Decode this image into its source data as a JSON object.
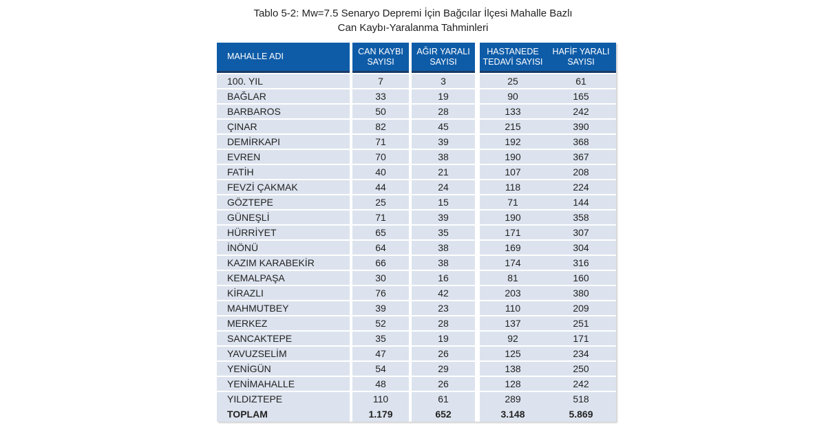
{
  "caption": {
    "line1": "Tablo 5-2: Mw=7.5 Senaryo Depremi İçin Bağcılar İlçesi Mahalle Bazlı",
    "line2": "Can Kaybı-Yaralanma Tahminleri"
  },
  "colors": {
    "header_bg": "#0e5ca8",
    "header_border": "#1a3a66",
    "row_bg": "#dce3ee",
    "header_text": "#ffffff",
    "body_text": "#222222"
  },
  "table": {
    "columns": [
      {
        "line1": "MAHALLE ADI",
        "line2": ""
      },
      {
        "line1": "CAN KAYBI",
        "line2": "SAYISI"
      },
      {
        "line1": "AĞIR YARALI",
        "line2": "SAYISI"
      },
      {
        "line1": "HASTANEDE",
        "line2": "TEDAVİ SAYISI"
      },
      {
        "line1": "HAFİF YARALI",
        "line2": "SAYISI"
      }
    ],
    "rows": [
      {
        "name": "100. YIL",
        "values": [
          "7",
          "3",
          "25",
          "61"
        ]
      },
      {
        "name": "BAĞLAR",
        "values": [
          "33",
          "19",
          "90",
          "165"
        ]
      },
      {
        "name": "BARBAROS",
        "values": [
          "50",
          "28",
          "133",
          "242"
        ]
      },
      {
        "name": "ÇINAR",
        "values": [
          "82",
          "45",
          "215",
          "390"
        ]
      },
      {
        "name": "DEMİRKAPI",
        "values": [
          "71",
          "39",
          "192",
          "368"
        ]
      },
      {
        "name": "EVREN",
        "values": [
          "70",
          "38",
          "190",
          "367"
        ]
      },
      {
        "name": "FATİH",
        "values": [
          "40",
          "21",
          "107",
          "208"
        ]
      },
      {
        "name": "FEVZİ ÇAKMAK",
        "values": [
          "44",
          "24",
          "118",
          "224"
        ]
      },
      {
        "name": "GÖZTEPE",
        "values": [
          "25",
          "15",
          "71",
          "144"
        ]
      },
      {
        "name": "GÜNEŞLİ",
        "values": [
          "71",
          "39",
          "190",
          "358"
        ]
      },
      {
        "name": "HÜRRİYET",
        "values": [
          "65",
          "35",
          "171",
          "307"
        ]
      },
      {
        "name": "İNÖNÜ",
        "values": [
          "64",
          "38",
          "169",
          "304"
        ]
      },
      {
        "name": "KAZIM KARABEKİR",
        "values": [
          "66",
          "38",
          "174",
          "316"
        ]
      },
      {
        "name": "KEMALPAŞA",
        "values": [
          "30",
          "16",
          "81",
          "160"
        ]
      },
      {
        "name": "KİRAZLI",
        "values": [
          "76",
          "42",
          "203",
          "380"
        ]
      },
      {
        "name": "MAHMUTBEY",
        "values": [
          "39",
          "23",
          "110",
          "209"
        ]
      },
      {
        "name": "MERKEZ",
        "values": [
          "52",
          "28",
          "137",
          "251"
        ]
      },
      {
        "name": "SANCAKTEPE",
        "values": [
          "35",
          "19",
          "92",
          "171"
        ]
      },
      {
        "name": "YAVUZSELİM",
        "values": [
          "47",
          "26",
          "125",
          "234"
        ]
      },
      {
        "name": "YENİGÜN",
        "values": [
          "54",
          "29",
          "138",
          "250"
        ]
      },
      {
        "name": "YENİMAHALLE",
        "values": [
          "48",
          "26",
          "128",
          "242"
        ]
      },
      {
        "name": "YILDIZTEPE",
        "values": [
          "110",
          "61",
          "289",
          "518"
        ]
      }
    ],
    "total_row": {
      "name": "TOPLAM",
      "values": [
        "1.179",
        "652",
        "3.148",
        "5.869"
      ]
    }
  }
}
